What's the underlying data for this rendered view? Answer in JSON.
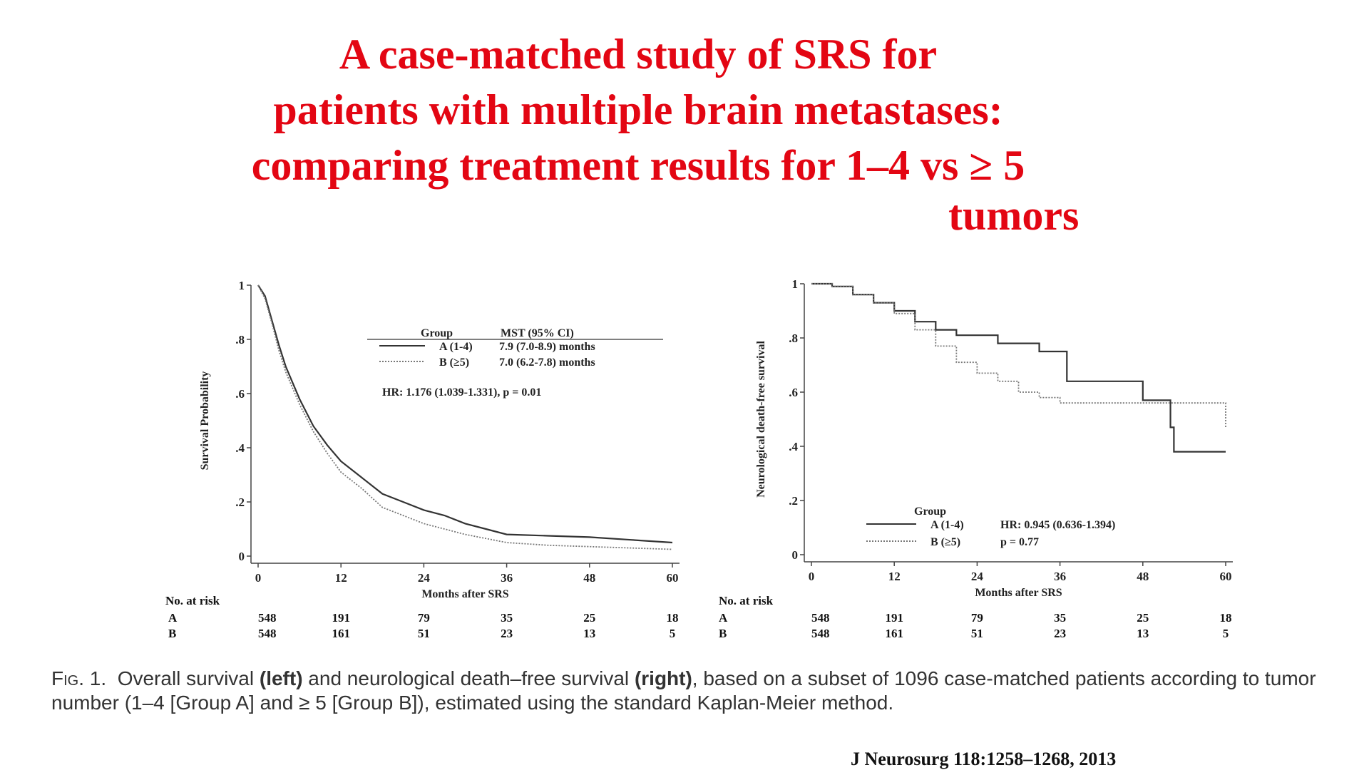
{
  "title": {
    "lines": [
      "A case-matched study of SRS for",
      "patients with multiple brain metastases:",
      "comparing treatment results for 1–4 vs ≥ 5",
      "tumors"
    ],
    "color": "#e30613"
  },
  "chart_data": [
    {
      "type": "line",
      "title": "",
      "xlabel": "Months after SRS",
      "ylabel": "Survival Probability",
      "xlim": [
        0,
        60
      ],
      "ylim": [
        0,
        1
      ],
      "x_ticks": [
        0,
        12,
        24,
        36,
        48,
        60
      ],
      "y_ticks": [
        0,
        0.2,
        0.4,
        0.6,
        0.8,
        1
      ],
      "y_tick_labels": [
        "0",
        ".2",
        ".4",
        ".6",
        ".8",
        "1"
      ],
      "legend": {
        "header": [
          "Group",
          "MST (95% CI)"
        ],
        "entries": [
          {
            "label": "A (1-4)",
            "value": "7.9 (7.0-8.9) months"
          },
          {
            "label": "B (≥5)",
            "value": "7.0 (6.2-7.8) months"
          }
        ],
        "placement": "top-right"
      },
      "annotation": "HR: 1.176 (1.039-1.331), p = 0.01",
      "series": [
        {
          "name": "A (1-4)",
          "style": "solid",
          "x": [
            0,
            1,
            2,
            3,
            4,
            6,
            8,
            10,
            12,
            15,
            18,
            21,
            24,
            27,
            30,
            33,
            36,
            42,
            48,
            54,
            60
          ],
          "y": [
            1.0,
            0.96,
            0.87,
            0.78,
            0.7,
            0.58,
            0.48,
            0.41,
            0.35,
            0.29,
            0.23,
            0.2,
            0.17,
            0.15,
            0.12,
            0.1,
            0.08,
            0.075,
            0.07,
            0.06,
            0.05
          ]
        },
        {
          "name": "B (≥5)",
          "style": "dotted",
          "x": [
            0,
            1,
            2,
            3,
            4,
            6,
            8,
            10,
            12,
            15,
            18,
            21,
            24,
            27,
            30,
            33,
            36,
            42,
            48,
            54,
            60
          ],
          "y": [
            1.0,
            0.95,
            0.86,
            0.76,
            0.68,
            0.56,
            0.46,
            0.38,
            0.31,
            0.25,
            0.18,
            0.15,
            0.12,
            0.1,
            0.08,
            0.065,
            0.05,
            0.04,
            0.035,
            0.03,
            0.025
          ]
        }
      ],
      "risk_table": {
        "title": "No. at risk",
        "rows": [
          {
            "group": "A",
            "values": [
              "548",
              "191",
              "79",
              "35",
              "25",
              "18"
            ]
          },
          {
            "group": "B",
            "values": [
              "548",
              "161",
              "51",
              "23",
              "13",
              "5"
            ]
          }
        ]
      }
    },
    {
      "type": "line",
      "title": "",
      "xlabel": "Months after SRS",
      "ylabel": "Neurological death-free survival",
      "xlim": [
        0,
        60
      ],
      "ylim": [
        0,
        1
      ],
      "x_ticks": [
        0,
        12,
        24,
        36,
        48,
        60
      ],
      "y_ticks": [
        0,
        0.2,
        0.4,
        0.6,
        0.8,
        1
      ],
      "y_tick_labels": [
        "0",
        ".2",
        ".4",
        ".6",
        ".8",
        "1"
      ],
      "legend": {
        "header": [
          "Group"
        ],
        "entries": [
          {
            "label": "A (1-4)",
            "value": "HR: 0.945 (0.636-1.394)"
          },
          {
            "label": "B (≥5)",
            "value": "p = 0.77"
          }
        ],
        "placement": "bottom-left"
      },
      "series": [
        {
          "name": "A (1-4)",
          "style": "solid",
          "step": true,
          "x": [
            0,
            3,
            6,
            9,
            12,
            15,
            18,
            21,
            24,
            27,
            30,
            33,
            36,
            37,
            48,
            52,
            52.5,
            60
          ],
          "y": [
            1.0,
            0.99,
            0.96,
            0.93,
            0.9,
            0.86,
            0.83,
            0.81,
            0.81,
            0.78,
            0.78,
            0.75,
            0.75,
            0.64,
            0.57,
            0.47,
            0.38,
            0.38
          ]
        },
        {
          "name": "B (≥5)",
          "style": "dotted",
          "step": true,
          "x": [
            0,
            3,
            6,
            9,
            12,
            15,
            18,
            21,
            24,
            27,
            30,
            33,
            36,
            42,
            48,
            54,
            59.5,
            60
          ],
          "y": [
            1.0,
            0.99,
            0.96,
            0.93,
            0.89,
            0.83,
            0.77,
            0.71,
            0.67,
            0.64,
            0.6,
            0.58,
            0.56,
            0.56,
            0.56,
            0.56,
            0.56,
            0.47
          ]
        }
      ],
      "risk_table": {
        "title": "No. at risk",
        "rows": [
          {
            "group": "A",
            "values": [
              "548",
              "191",
              "79",
              "35",
              "25",
              "18"
            ]
          },
          {
            "group": "B",
            "values": [
              "548",
              "161",
              "51",
              "23",
              "13",
              "5"
            ]
          }
        ]
      }
    }
  ],
  "caption": {
    "fig_label": "Fig. 1.",
    "part1": "Overall survival ",
    "bold1": "(left)",
    "part2": " and neurological death–free survival ",
    "bold2": "(right)",
    "part3": ", based on a subset of 1096 case-matched patients according to tumor number (1–4 [Group A] and ≥ 5 [Group B]), estimated using the standard Kaplan-Meier method."
  },
  "citation": "J Neurosurg 118:1258–1268, 2013"
}
